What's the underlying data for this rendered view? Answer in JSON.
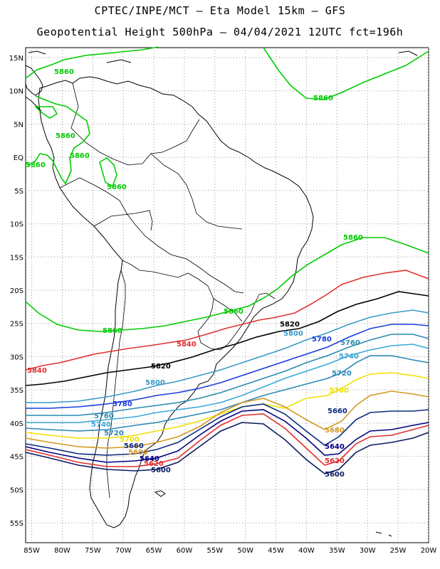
{
  "header": {
    "line1": "CPTEC/INPE/MCT –  Eta Model 15km – GFS",
    "line2": "Geopotential Height 500hPa – 04/04/2021 12UTC fct=196h"
  },
  "map": {
    "lon_range": [
      -86,
      -20
    ],
    "lat_range": [
      -58,
      16.5
    ],
    "grid": true,
    "lat_ticks": [
      "15N",
      "10N",
      "5N",
      "EQ",
      "5S",
      "10S",
      "15S",
      "20S",
      "25S",
      "30S",
      "35S",
      "40S",
      "45S",
      "50S",
      "55S"
    ],
    "lon_ticks": [
      "85W",
      "80W",
      "75W",
      "70W",
      "65W",
      "60W",
      "55W",
      "50W",
      "45W",
      "40W",
      "35W",
      "30W",
      "25W",
      "20W"
    ],
    "colors": {
      "c5860": "#00cc00",
      "c5840": "#e03030",
      "c5820": "#000000",
      "c5800": "#3a9ac8",
      "c5780": "#1a3ce0",
      "c5760": "#2a8ab0",
      "c5740": "#3aa8d8",
      "c5720": "#2a88b8",
      "c5700": "#f0e000",
      "c5680": "#d49820",
      "c5660": "#0a2a80",
      "c5640": "#000080",
      "c5620": "#e03030",
      "c5600": "#0a1a60"
    }
  },
  "contour_labels": {
    "c5860_a": "5860",
    "c5860_b": "5860",
    "c5860_c": "5860",
    "c5860_d": "5860",
    "c5860_e": "5860",
    "c5860_f": "5860",
    "c5860_g": "5860",
    "c5860_h": "5860",
    "c5860_i": "5860",
    "c5840_a": "5840",
    "c5840_b": "5840",
    "c5820_a": "5820",
    "c5820_b": "5820",
    "c5800_a": "5800",
    "c5800_b": "5800",
    "c5780_a": "5780",
    "c5780_b": "5780",
    "c5760_a": "5760",
    "c5760_b": "5760",
    "c5740_a": "5740",
    "c5740_b": "5740",
    "c5720_a": "5720",
    "c5720_b": "5720",
    "c5700_a": "5700",
    "c5700_b": "5700",
    "c5680_a": "5680",
    "c5680_b": "5680",
    "c5660_a": "5660",
    "c5660_b": "5660",
    "c5640_a": "5640",
    "c5640_b": "5640",
    "c5620_a": "5620",
    "c5620_b": "5620",
    "c5600_a": "5600",
    "c5600_b": "5600"
  }
}
